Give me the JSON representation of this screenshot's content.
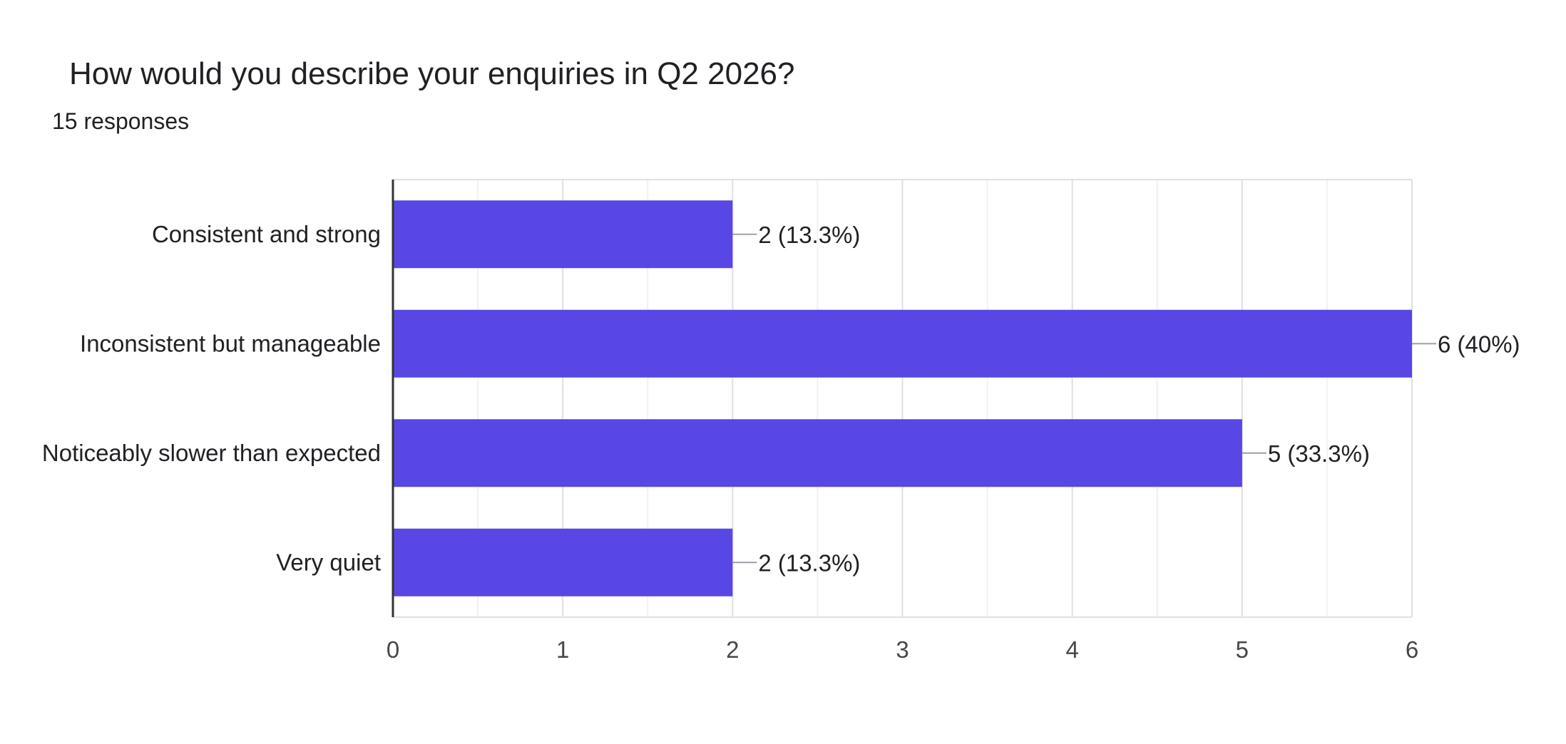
{
  "header": {
    "title": "How would you describe your enquiries in Q2 2026?",
    "responses": "15 responses"
  },
  "colors": {
    "bar": "#5847e5",
    "grid_major": "#e0e0e0",
    "grid_minor": "#f1f1f1",
    "axis": "#333333",
    "leader": "#9aa0a6"
  },
  "chart_data": {
    "type": "bar",
    "orientation": "horizontal",
    "categories": [
      "Consistent and strong",
      "Inconsistent but manageable",
      "Noticeably slower than expected",
      "Very quiet"
    ],
    "values": [
      2,
      6,
      5,
      2
    ],
    "data_labels": [
      "2 (13.3%)",
      "6 (40%)",
      "5 (33.3%)",
      "2 (13.3%)"
    ],
    "xticks": [
      "0",
      "1",
      "2",
      "3",
      "4",
      "5",
      "6"
    ],
    "xlim": [
      0,
      6
    ],
    "grid": true,
    "legend": "none"
  }
}
